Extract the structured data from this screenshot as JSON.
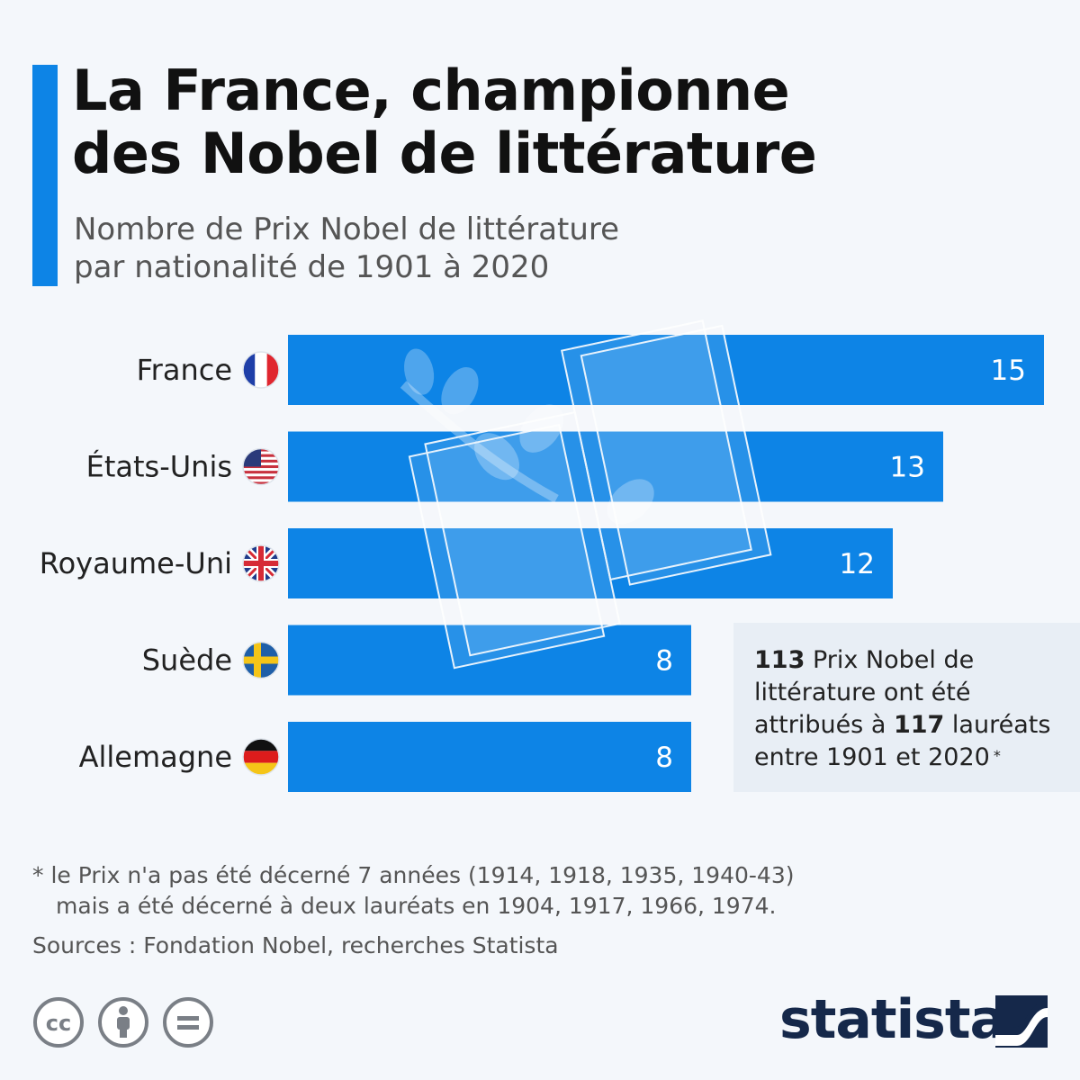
{
  "header": {
    "title": "La France, championne\ndes Nobel de littérature",
    "subtitle": "Nombre de Prix Nobel de littérature\npar nationalité de 1901 à 2020"
  },
  "colors": {
    "accent": "#0d84e6",
    "bar": "#0d84e6",
    "box": "#e8eef5",
    "logo": "#15284a"
  },
  "chart_data": {
    "type": "bar",
    "orientation": "horizontal",
    "categories": [
      "France",
      "États-Unis",
      "Royaume-Uni",
      "Suède",
      "Allemagne"
    ],
    "values": [
      15,
      13,
      12,
      8,
      8
    ],
    "flags": [
      "flag-france-icon",
      "flag-usa-icon",
      "flag-uk-icon",
      "flag-sweden-icon",
      "flag-germany-icon"
    ],
    "xlim": [
      0,
      15
    ],
    "grid": false,
    "title": "La France, championne des Nobel de littérature"
  },
  "info_box": {
    "num1": "113",
    "text1": " Prix Nobel de littérature ont été attribués à ",
    "num2": "117",
    "text2": " lauréats entre 1901 et 2020",
    "mark": "*"
  },
  "footnote": {
    "line1": "* le Prix n'a pas été décerné 7 années (1914, 1918, 1935, 1940-43)",
    "line2": "mais a été décerné à deux lauréats en 1904, 1917, 1966, 1974."
  },
  "sources": "Sources : Fondation Nobel, recherches Statista",
  "license_icons": [
    "cc-icon",
    "by-icon",
    "nd-icon"
  ],
  "logo": {
    "text": "statista",
    "icon": "statista-logo-icon"
  }
}
